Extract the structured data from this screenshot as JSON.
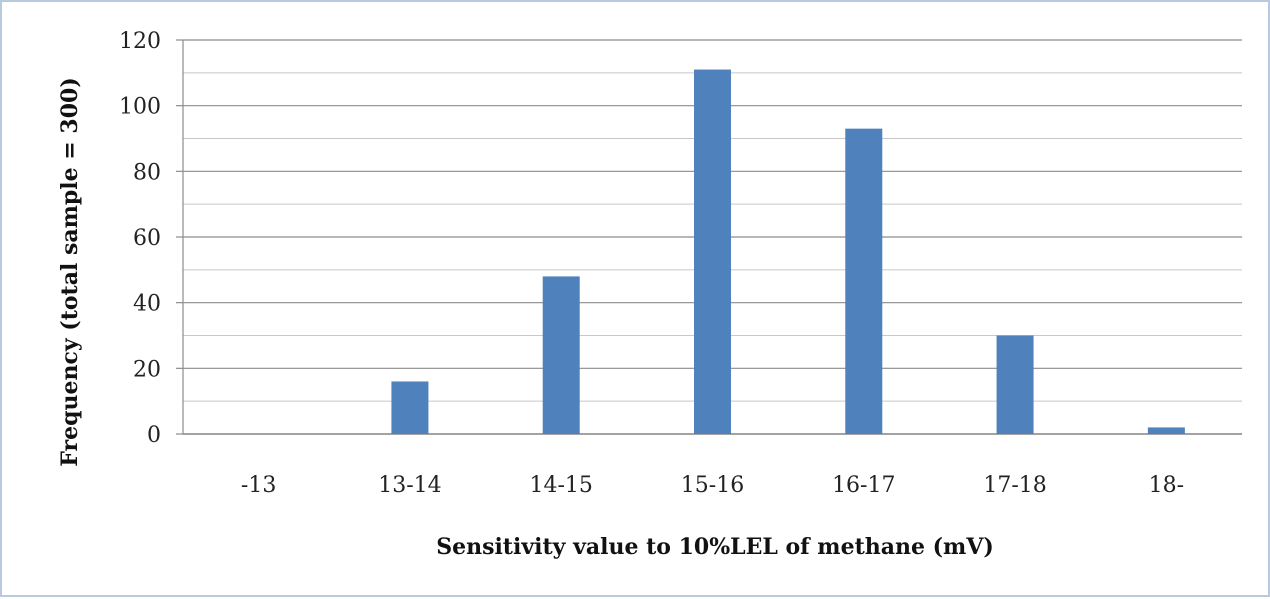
{
  "chart_data": {
    "type": "bar",
    "categories": [
      "-13",
      "13-14",
      "14-15",
      "15-16",
      "16-17",
      "17-18",
      "18-"
    ],
    "series": [
      {
        "values": [
          0,
          16,
          48,
          111,
          93,
          30,
          2
        ]
      }
    ],
    "xlabel": "Sensitivity value to 10%LEL of methane (mV)",
    "ylabel": "Frequency (total sample = 300)",
    "ylim": [
      0,
      120
    ],
    "yticks": [
      0,
      20,
      40,
      60,
      80,
      100,
      120
    ],
    "grid": true,
    "colors": {
      "bar": "#4f81bd",
      "grid": "#8c8c8c"
    }
  }
}
